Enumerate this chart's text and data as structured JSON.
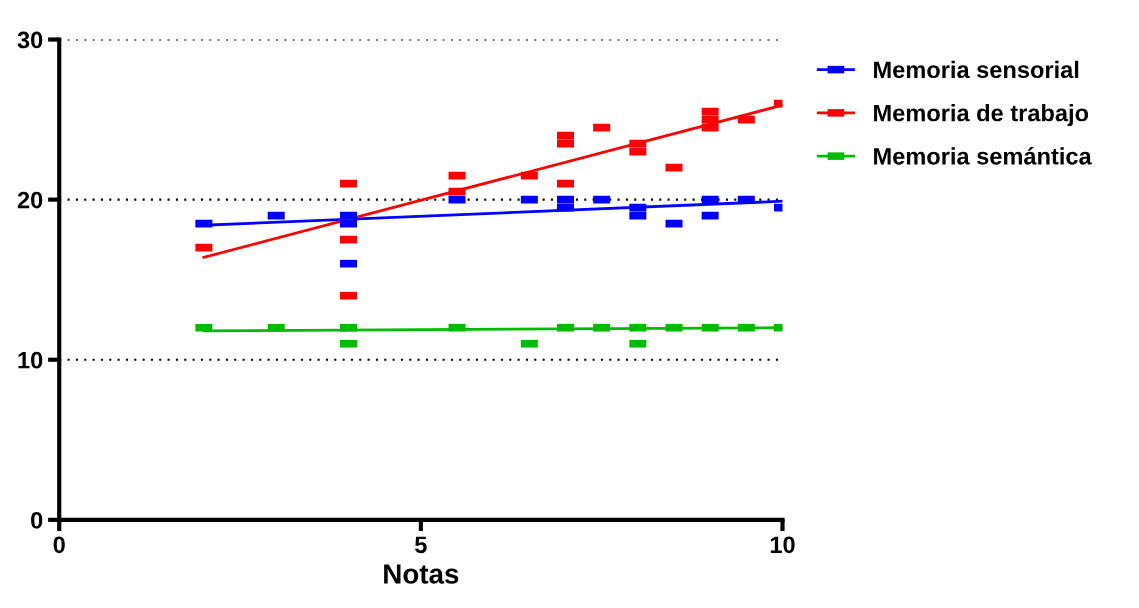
{
  "chart_data": {
    "type": "scatter",
    "xlabel": "Notas",
    "xlim": [
      0,
      10
    ],
    "ylim": [
      0,
      30
    ],
    "xticks": [
      0,
      5,
      10
    ],
    "yticks": [
      0,
      10,
      20,
      30
    ],
    "grid": "y",
    "legend": "top right",
    "series": [
      {
        "name": "Memoria sensorial",
        "color": "#0000ff",
        "marker": "square",
        "x": [
          2,
          3,
          4,
          4,
          4,
          5.5,
          6.5,
          7,
          7,
          7.5,
          8,
          8,
          8.5,
          9,
          9,
          9.5,
          10
        ],
        "values": [
          18.5,
          19,
          18.5,
          19,
          16,
          20,
          20,
          20,
          19.5,
          20,
          19.5,
          19,
          18.5,
          20,
          19,
          20,
          19.5
        ]
      },
      {
        "name": "Memoria de trabajo",
        "color": "#ff0000",
        "marker": "square",
        "x": [
          2,
          4,
          4,
          4,
          5.5,
          5.5,
          6.5,
          7,
          7,
          7,
          7.5,
          8,
          8,
          8.5,
          9,
          9,
          9,
          9.5,
          10
        ],
        "values": [
          17,
          21,
          17.5,
          14,
          21.5,
          20.5,
          21.5,
          24,
          23.5,
          21,
          24.5,
          23.5,
          23,
          22,
          25.5,
          25,
          24.5,
          25,
          26
        ]
      },
      {
        "name": "Memoria semántica",
        "color": "#00bb00",
        "marker": "square",
        "x": [
          2,
          3,
          4,
          4,
          5.5,
          6.5,
          7,
          7.5,
          8,
          8,
          8.5,
          9,
          9.5,
          10
        ],
        "values": [
          12,
          12,
          12,
          11,
          12,
          11,
          12,
          12,
          12,
          11,
          12,
          12,
          12,
          12
        ]
      },
      {
        "type": "line",
        "color": "#0000ff",
        "x": [
          2,
          10
        ],
        "values": [
          18.4,
          19.9
        ]
      },
      {
        "type": "line",
        "color": "#ff0000",
        "x": [
          2,
          10
        ],
        "values": [
          16.4,
          25.9
        ]
      },
      {
        "type": "line",
        "color": "#00bb00",
        "x": [
          2,
          10
        ],
        "values": [
          11.8,
          12
        ]
      }
    ]
  }
}
